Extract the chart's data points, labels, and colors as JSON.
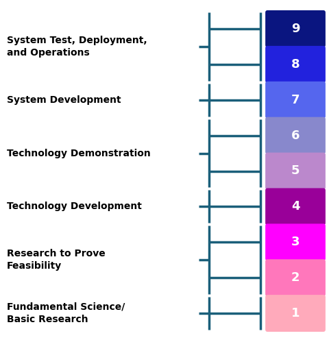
{
  "levels": [
    9,
    8,
    7,
    6,
    5,
    4,
    3,
    2,
    1
  ],
  "colors": [
    "#0a1580",
    "#2222dd",
    "#5566ee",
    "#8888cc",
    "#bb88cc",
    "#990099",
    "#ff00ff",
    "#ff77bb",
    "#ffaabb"
  ],
  "groups": [
    {
      "label": "System Test, Deployment,\nand Operations",
      "levels": [
        9,
        8
      ]
    },
    {
      "label": "System Development",
      "levels": [
        7
      ]
    },
    {
      "label": "Technology Demonstration",
      "levels": [
        6,
        5
      ]
    },
    {
      "label": "Technology Development",
      "levels": [
        4
      ]
    },
    {
      "label": "Research to Prove\nFeasibility",
      "levels": [
        3,
        2
      ]
    },
    {
      "label": "Fundamental Science/\nBasic Research",
      "levels": [
        1
      ]
    }
  ],
  "bracket_color": "#1a5f7a",
  "background_color": "#ffffff",
  "text_color": "#000000",
  "number_color": "#ffffff"
}
